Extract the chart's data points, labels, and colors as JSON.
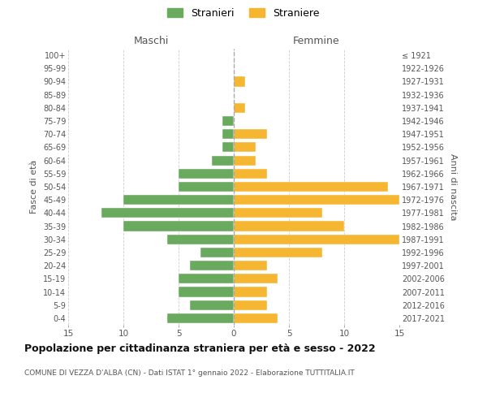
{
  "age_groups_bottom_to_top": [
    "0-4",
    "5-9",
    "10-14",
    "15-19",
    "20-24",
    "25-29",
    "30-34",
    "35-39",
    "40-44",
    "45-49",
    "50-54",
    "55-59",
    "60-64",
    "65-69",
    "70-74",
    "75-79",
    "80-84",
    "85-89",
    "90-94",
    "95-99",
    "100+"
  ],
  "birth_years_bottom_to_top": [
    "2017-2021",
    "2012-2016",
    "2007-2011",
    "2002-2006",
    "1997-2001",
    "1992-1996",
    "1987-1991",
    "1982-1986",
    "1977-1981",
    "1972-1976",
    "1967-1971",
    "1962-1966",
    "1957-1961",
    "1952-1956",
    "1947-1951",
    "1942-1946",
    "1937-1941",
    "1932-1936",
    "1927-1931",
    "1922-1926",
    "≤ 1921"
  ],
  "maschi_bottom_to_top": [
    6,
    4,
    5,
    5,
    4,
    3,
    6,
    10,
    12,
    10,
    5,
    5,
    2,
    1,
    1,
    1,
    0,
    0,
    0,
    0,
    0
  ],
  "femmine_bottom_to_top": [
    4,
    3,
    3,
    4,
    3,
    8,
    15,
    10,
    8,
    15,
    14,
    3,
    2,
    2,
    3,
    0,
    1,
    0,
    1,
    0,
    0
  ],
  "color_maschi": "#6aaa5e",
  "color_femmine": "#f5b731",
  "title": "Popolazione per cittadinanza straniera per età e sesso - 2022",
  "subtitle": "COMUNE DI VEZZA D'ALBA (CN) - Dati ISTAT 1° gennaio 2022 - Elaborazione TUTTITALIA.IT",
  "xlabel_left": "Maschi",
  "xlabel_right": "Femmine",
  "ylabel_left": "Fasce di età",
  "ylabel_right": "Anni di nascita",
  "legend_maschi": "Stranieri",
  "legend_femmine": "Straniere",
  "xlim": 15,
  "background_color": "#ffffff",
  "grid_color": "#cccccc"
}
